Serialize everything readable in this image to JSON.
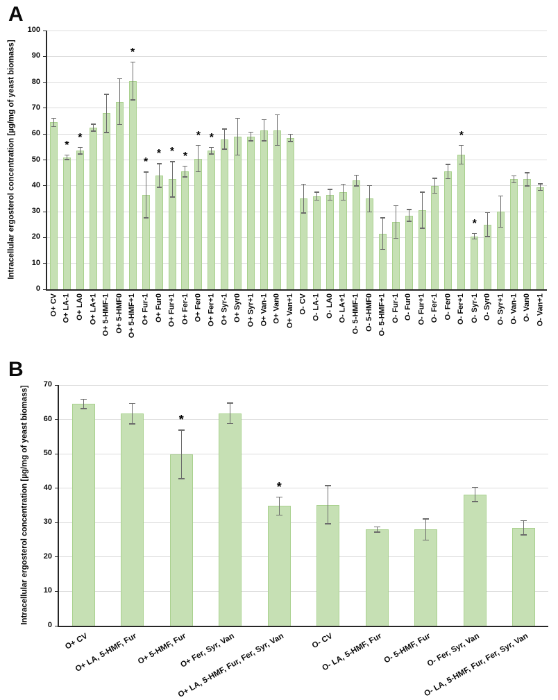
{
  "figure": {
    "panels": [
      {
        "label": "A"
      },
      {
        "label": "B"
      }
    ]
  },
  "chart_data": [
    {
      "type": "bar",
      "panel_label": "A",
      "title": "",
      "xlabel": "",
      "ylabel": "Intracellular ergosterol concentration [µg/mg of yeast biomass]",
      "ylim": [
        0,
        100
      ],
      "ytick_step": 10,
      "grid": true,
      "legend": null,
      "significance_marker": "*",
      "bar_fill": "#c6e0b4",
      "bar_stroke": "#a9d18e",
      "error_bar_color": "#6b6b6b",
      "axis_color": "#262626",
      "gridline_color": "#dcdcdc",
      "categories": [
        "O+ CV",
        "O+ LA-1",
        "O+ LA0",
        "O+ LA+1",
        "O+ 5-HMF-1",
        "O+ 5-HMF0",
        "O+ 5-HMF+1",
        "O+ Fur-1",
        "O+ Fur0",
        "O+ Fur+1",
        "O+ Fer-1",
        "O+ Fer0",
        "O+ Fer+1",
        "O+ Syr-1",
        "O+ Syr0",
        "O+ Syr+1",
        "O+ Van-1",
        "O+ Van0",
        "O+ Van+1",
        "O- CV",
        "O- LA-1",
        "O- LA0",
        "O- LA+1",
        "O- 5-HMF-1",
        "O- 5-HMF0",
        "O- 5-HMF+1",
        "O- Fur-1",
        "O- Fur0",
        "O- Fur+1",
        "O- Fer-1",
        "O- Fer0",
        "O- Fer+1",
        "O- Syr-1",
        "O- Syr0",
        "O- Syr+1",
        "O- Van-1",
        "O- Van0",
        "O- Van+1"
      ],
      "values": [
        64.5,
        51,
        53.5,
        62.5,
        68,
        72.5,
        80.5,
        36.5,
        44,
        42.5,
        45.5,
        50.5,
        53.5,
        58,
        59,
        59,
        61.5,
        61.5,
        58.5,
        35,
        36,
        36.5,
        37.5,
        42,
        35,
        21.5,
        26,
        28.5,
        30.5,
        40,
        45.5,
        52,
        20.5,
        25,
        30,
        42.5,
        42.5,
        39.5
      ],
      "errors": [
        1.5,
        0.8,
        1.2,
        1.3,
        7.3,
        8.8,
        7.2,
        8.8,
        4.5,
        6.8,
        2,
        5,
        1.2,
        3.8,
        7,
        1.6,
        4,
        5.8,
        1.3,
        5.5,
        1.5,
        2,
        3,
        2,
        5,
        6,
        6.2,
        2.2,
        6.9,
        2.8,
        2.7,
        3.5,
        1,
        4.5,
        6,
        1.3,
        2.5,
        1.2
      ],
      "significant_indices": [
        1,
        2,
        6,
        7,
        8,
        9,
        10,
        11,
        12,
        31,
        32
      ]
    },
    {
      "type": "bar",
      "panel_label": "B",
      "title": "",
      "xlabel": "",
      "ylabel": "Intracellular ergosterol concentration [µg/mg of yeast biomass]",
      "ylim": [
        0,
        70
      ],
      "ytick_step": 10,
      "grid": true,
      "legend": null,
      "significance_marker": "*",
      "bar_fill": "#c6e0b4",
      "bar_stroke": "#a9d18e",
      "error_bar_color": "#6b6b6b",
      "axis_color": "#262626",
      "gridline_color": "#dcdcdc",
      "categories": [
        "O+ CV",
        "O+ LA, 5-HMF, Fur",
        "O+ 5-HMF, Fur",
        "O+ Fer, Syr, Van",
        "O+ LA, 5-HMF, Fur, Fer, Syr, Van",
        "O- CV",
        "O- LA, 5-HMF, Fur",
        "O- 5-HMF, Fur",
        "O- Fer, Syr, Van",
        "O- LA, 5-HMF, Fur, Fer, Syr, Van"
      ],
      "values": [
        64.5,
        61.7,
        49.8,
        61.8,
        34.8,
        35.2,
        28,
        28,
        38.2,
        28.5
      ],
      "errors": [
        1.3,
        2.9,
        7,
        2.9,
        2.6,
        5.5,
        0.7,
        3,
        2,
        2
      ],
      "significant_indices": [
        2,
        4
      ]
    }
  ]
}
